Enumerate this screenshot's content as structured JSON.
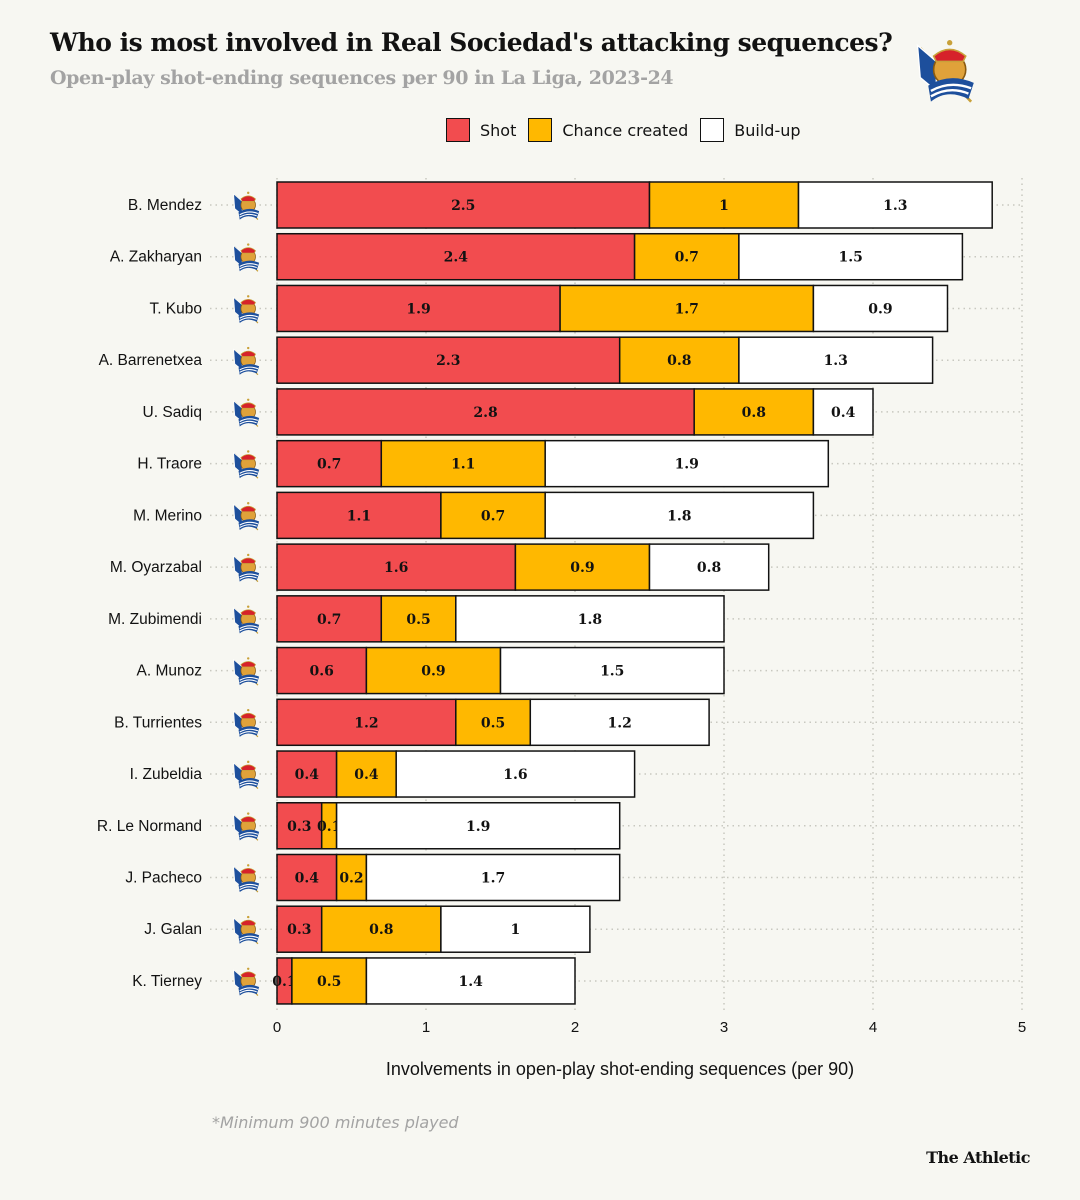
{
  "title": "Who is most involved in Real Sociedad's attacking sequences?",
  "subtitle": "Open-play shot-ending sequences per 90 in La Liga, 2023-24",
  "footnote": "*Minimum 900 minutes played",
  "brand": "The Athletic",
  "crest_icon": "real-sociedad-crest",
  "colors": {
    "Shot": "#f24c4f",
    "Chance created": "#ffb800",
    "Build-up": "#ffffff",
    "background": "#f7f7f2"
  },
  "chart_data": {
    "type": "bar",
    "orientation": "horizontal",
    "stacked": true,
    "xlabel": "Involvements in open-play shot-ending sequences (per 90)",
    "xlim": [
      0,
      5
    ],
    "xticks": [
      0,
      1,
      2,
      3,
      4,
      5
    ],
    "grid": true,
    "legend": "top",
    "categories": [
      "B. Mendez",
      "A. Zakharyan",
      "T. Kubo",
      "A. Barrenetxea",
      "U. Sadiq",
      "H. Traore",
      "M. Merino",
      "M. Oyarzabal",
      "M. Zubimendi",
      "A. Munoz",
      "B. Turrientes",
      "I. Zubeldia",
      "R. Le Normand",
      "J. Pacheco",
      "J. Galan",
      "K. Tierney"
    ],
    "series": [
      {
        "name": "Shot",
        "values": [
          2.5,
          2.4,
          1.9,
          2.3,
          2.8,
          0.7,
          1.1,
          1.6,
          0.7,
          0.6,
          1.2,
          0.4,
          0.3,
          0.4,
          0.3,
          0.1
        ]
      },
      {
        "name": "Chance created",
        "values": [
          1,
          0.7,
          1.7,
          0.8,
          0.8,
          1.1,
          0.7,
          0.9,
          0.5,
          0.9,
          0.5,
          0.4,
          0.1,
          0.2,
          0.8,
          0.5
        ]
      },
      {
        "name": "Build-up",
        "values": [
          1.3,
          1.5,
          0.9,
          1.3,
          0.4,
          1.9,
          1.8,
          0.8,
          1.8,
          1.5,
          1.2,
          1.6,
          1.9,
          1.7,
          1,
          1.4
        ]
      }
    ]
  }
}
